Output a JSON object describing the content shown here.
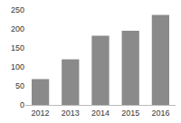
{
  "chart_data": {
    "type": "bar",
    "categories": [
      "2012",
      "2013",
      "2014",
      "2015",
      "2016"
    ],
    "values": [
      68,
      120,
      182,
      195,
      237
    ],
    "color": "#8a8a8a",
    "ylim": [
      0,
      250
    ],
    "yticks": [
      0,
      50,
      100,
      150,
      200,
      250
    ],
    "grid": false
  }
}
